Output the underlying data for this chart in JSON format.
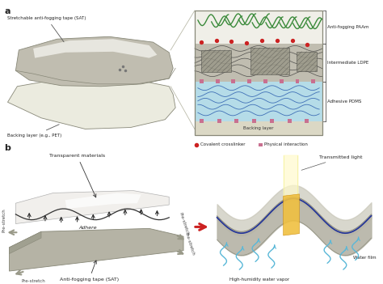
{
  "panel_a": "a",
  "panel_b": "b",
  "sat_label": "Stretchable anti-fogging tape (SAT)",
  "backing_label": "Backing layer (e.g., PET)",
  "layer1_label": "Anti-fogging PAAm",
  "layer2_label": "Intermediate LDPE",
  "layer3_label": "Adhesive PDMS",
  "layer4_label": "Backing layer",
  "legend1": "Covalent crosslinker",
  "legend2": "Physical interaction",
  "transparent_label": "Transparent materials",
  "adhere_label": "Adhere",
  "sat_b_label": "Anti-fogging tape (SAT)",
  "transmitted_label": "Transmitted light",
  "water_vapor_label": "High-humidity water vapor",
  "water_film_label": "Water film",
  "prestretch": "Pre-stretch",
  "bg_color": "#ffffff",
  "gray_tape": "#c8c7bc",
  "gray_dark": "#8a8a7a",
  "gray_medium": "#b0ae9e",
  "gray_light": "#d8d6c8",
  "white_tape": "#f0eeea",
  "blue_pdms": "#b8dce8",
  "green_paam": "#3a8a3a",
  "red_cross": "#cc2222",
  "pink_phys": "#c87090",
  "yellow_sat": "#f0c040",
  "cyan_vapor": "#5ab8d8",
  "ldpe_gray": "#aaa898",
  "font_small": 4.5,
  "font_panel": 8
}
